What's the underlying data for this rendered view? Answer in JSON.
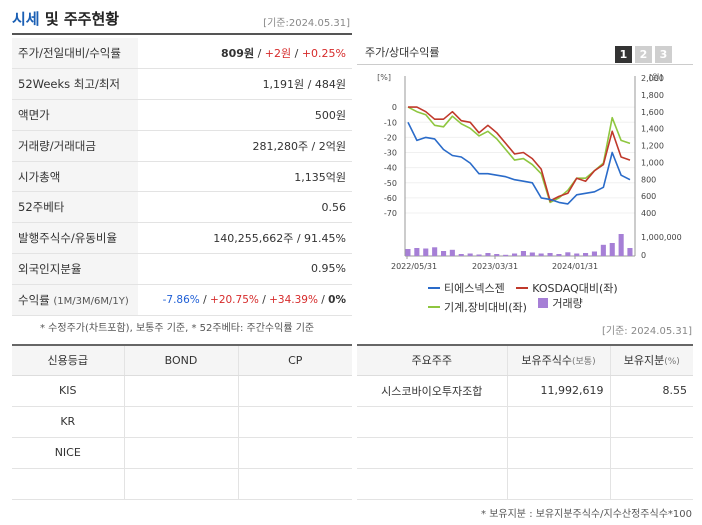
{
  "header": {
    "title_main": "시세",
    "title_rest": " 및 주주현황",
    "date": "[기준:2024.05.31]"
  },
  "summary": [
    {
      "key": "주가/전일대비/수익률",
      "v1": "809원",
      "sep1": " / ",
      "v2": "+2원",
      "sep2": " / ",
      "v3": "+0.25%"
    },
    {
      "key": "52Weeks 최고/최저",
      "value": "1,191원 / 484원"
    },
    {
      "key": "액면가",
      "value": "500원"
    },
    {
      "key": "거래량/거래대금",
      "value": "281,280주 / 2억원"
    },
    {
      "key": "시가총액",
      "value": "1,135억원"
    },
    {
      "key": "52주베타",
      "value": "0.56"
    },
    {
      "key": "발행주식수/유동비율",
      "value": "140,255,662주 / 91.45%"
    },
    {
      "key": "외국인지분율",
      "value": "0.95%"
    },
    {
      "key": "수익률",
      "key_sub": "(1M/3M/6M/1Y)",
      "r1": "-7.86%",
      "r2": "+20.75%",
      "r3": "+34.39%",
      "r4": "0%",
      "sep": "/ "
    }
  ],
  "note1": "* 수정주가(차트포함), 보통주 기준, * 52주베타: 주간수익률 기준",
  "chart_panel": {
    "title": "주가/상대수익률",
    "buttons": [
      "1",
      "2",
      "3"
    ],
    "active_button": 0
  },
  "chart_data": {
    "type": "line",
    "left_unit": "[%]",
    "right_unit": "[원]",
    "left_ticks": [
      "0",
      "-10",
      "-20",
      "-30",
      "-40",
      "-50",
      "-60",
      "-70"
    ],
    "left_ylim": [
      -70,
      10
    ],
    "right_ticks": [
      "2,000",
      "1,800",
      "1,600",
      "1,400",
      "1,200",
      "1,000",
      "800",
      "600",
      "400"
    ],
    "right_ylim": [
      400,
      2000
    ],
    "volume_tick": "1,000,000",
    "volume_tick_zero": "0",
    "x_labels": [
      "2022/05/31",
      "2023/03/31",
      "2024/01/31"
    ],
    "series": [
      {
        "name": "티에스넥스젠",
        "color": "#2a6bc9",
        "values": [
          -10,
          -22,
          -20,
          -21,
          -28,
          -32,
          -33,
          -37,
          -44,
          -44,
          -45,
          -46,
          -48,
          -49,
          -50,
          -60,
          -61,
          -63,
          -64,
          -58,
          -57,
          -56,
          -53,
          -30,
          -45,
          -48
        ]
      },
      {
        "name": "KOSDAQ대비(좌)",
        "color": "#c0392b",
        "values": [
          0,
          0,
          -3,
          -8,
          -8,
          -3,
          -9,
          -10,
          -17,
          -12,
          -17,
          -24,
          -31,
          -30,
          -34,
          -41,
          -62,
          -59,
          -57,
          -47,
          -49,
          -42,
          -38,
          -16,
          -33,
          -35
        ]
      },
      {
        "name": "기계,장비대비(좌)",
        "color": "#8ec63f",
        "values": [
          0,
          -3,
          -5,
          -12,
          -13,
          -6,
          -11,
          -14,
          -19,
          -16,
          -21,
          -28,
          -35,
          -34,
          -38,
          -44,
          -63,
          -60,
          -55,
          -47,
          -47,
          -42,
          -37,
          -7,
          -22,
          -24
        ]
      },
      {
        "name": "거래량",
        "color": "#a67fd6",
        "volume": [
          0.28,
          0.32,
          0.3,
          0.35,
          0.2,
          0.25,
          0.08,
          0.1,
          0.06,
          0.12,
          0.08,
          0.05,
          0.1,
          0.2,
          0.14,
          0.1,
          0.12,
          0.08,
          0.15,
          0.1,
          0.12,
          0.18,
          0.45,
          0.52,
          0.88,
          0.32
        ]
      }
    ]
  },
  "date2": "[기준: 2024.05.31]",
  "credit": {
    "headers": [
      "신용등급",
      "BOND",
      "CP"
    ],
    "rows": [
      [
        "KIS",
        "",
        ""
      ],
      [
        "KR",
        "",
        ""
      ],
      [
        "NICE",
        "",
        ""
      ],
      [
        "",
        "",
        ""
      ]
    ]
  },
  "holders": {
    "headers": [
      "주요주주",
      "보유주식수",
      "(보통)",
      "보유지분",
      "(%)"
    ],
    "rows": [
      [
        "시스코바이오투자조합",
        "11,992,619",
        "8.55"
      ],
      [
        "",
        "",
        ""
      ],
      [
        "",
        "",
        ""
      ],
      [
        "",
        "",
        ""
      ]
    ]
  },
  "note2": "* 보유지분 : 보유지분주식수/지수산정주식수*100"
}
